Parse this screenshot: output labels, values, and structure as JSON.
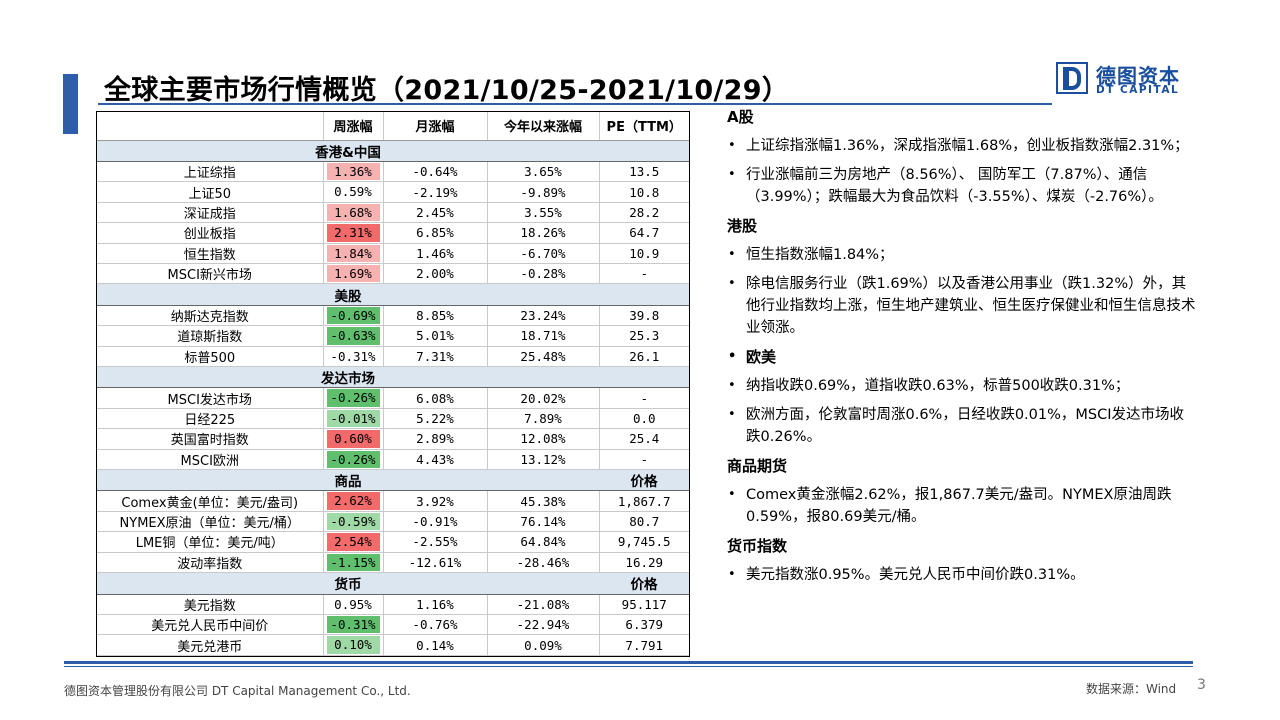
{
  "slide": {
    "title": "全球主要市场行情概览（2021/10/25-2021/10/29）",
    "logo": {
      "cn": "德图资本",
      "en": "DT CAPITAL"
    }
  },
  "table": {
    "headers": [
      "",
      "周涨幅",
      "月涨幅",
      "今年以来涨幅",
      "PE（TTM）"
    ],
    "colors": {
      "red_strong": "#f26a6a",
      "red_light": "#f6b1b1",
      "green_strong": "#5fbf6d",
      "green_light": "#9fd9a6"
    },
    "rows": [
      {
        "type": "cat",
        "label": "香港&中国",
        "last": ""
      },
      {
        "type": "data",
        "name": "上证综指",
        "week": "1.36%",
        "month": "-0.64%",
        "ytd": "3.65%",
        "last": "13.5",
        "fill": "red_light"
      },
      {
        "type": "data",
        "name": "上证50",
        "week": "0.59%",
        "month": "-2.19%",
        "ytd": "-9.89%",
        "last": "10.8",
        "fill": ""
      },
      {
        "type": "data",
        "name": "深证成指",
        "week": "1.68%",
        "month": "2.45%",
        "ytd": "3.55%",
        "last": "28.2",
        "fill": "red_light"
      },
      {
        "type": "data",
        "name": "创业板指",
        "week": "2.31%",
        "month": "6.85%",
        "ytd": "18.26%",
        "last": "64.7",
        "fill": "red_strong"
      },
      {
        "type": "data",
        "name": "恒生指数",
        "week": "1.84%",
        "month": "1.46%",
        "ytd": "-6.70%",
        "last": "10.9",
        "fill": "red_light"
      },
      {
        "type": "data",
        "name": "MSCI新兴市场",
        "week": "1.69%",
        "month": "2.00%",
        "ytd": "-0.28%",
        "last": "-",
        "fill": "red_light"
      },
      {
        "type": "cat",
        "label": "美股",
        "last": ""
      },
      {
        "type": "data",
        "name": "纳斯达克指数",
        "week": "-0.69%",
        "month": "8.85%",
        "ytd": "23.24%",
        "last": "39.8",
        "fill": "green_strong"
      },
      {
        "type": "data",
        "name": "道琼斯指数",
        "week": "-0.63%",
        "month": "5.01%",
        "ytd": "18.71%",
        "last": "25.3",
        "fill": "green_strong"
      },
      {
        "type": "data",
        "name": "标普500",
        "week": "-0.31%",
        "month": "7.31%",
        "ytd": "25.48%",
        "last": "26.1",
        "fill": ""
      },
      {
        "type": "cat",
        "label": "发达市场",
        "last": ""
      },
      {
        "type": "data",
        "name": "MSCI发达市场",
        "week": "-0.26%",
        "month": "6.08%",
        "ytd": "20.02%",
        "last": "-",
        "fill": "green_strong"
      },
      {
        "type": "data",
        "name": "日经225",
        "week": "-0.01%",
        "month": "5.22%",
        "ytd": "7.89%",
        "last": "0.0",
        "fill": "green_light"
      },
      {
        "type": "data",
        "name": "英国富时指数",
        "week": "0.60%",
        "month": "2.89%",
        "ytd": "12.08%",
        "last": "25.4",
        "fill": "red_strong"
      },
      {
        "type": "data",
        "name": "MSCI欧洲",
        "week": "-0.26%",
        "month": "4.43%",
        "ytd": "13.12%",
        "last": "-",
        "fill": "green_strong"
      },
      {
        "type": "cat",
        "label": "商品",
        "last": "价格"
      },
      {
        "type": "data",
        "name": "Comex黄金(单位：美元/盎司)",
        "week": "2.62%",
        "month": "3.92%",
        "ytd": "45.38%",
        "last": "1,867.7",
        "fill": "red_strong"
      },
      {
        "type": "data",
        "name": "NYMEX原油（单位：美元/桶）",
        "week": "-0.59%",
        "month": "-0.91%",
        "ytd": "76.14%",
        "last": "80.7",
        "fill": "green_light"
      },
      {
        "type": "data",
        "name": "LME铜（单位：美元/吨）",
        "week": "2.54%",
        "month": "-2.55%",
        "ytd": "64.84%",
        "last": "9,745.5",
        "fill": "red_strong"
      },
      {
        "type": "data",
        "name": "波动率指数",
        "week": "-1.15%",
        "month": "-12.61%",
        "ytd": "-28.46%",
        "last": "16.29",
        "fill": "green_strong"
      },
      {
        "type": "cat",
        "label": "货币",
        "last": "价格"
      },
      {
        "type": "data",
        "name": "美元指数",
        "week": "0.95%",
        "month": "1.16%",
        "ytd": "-21.08%",
        "last": "95.117",
        "fill": ""
      },
      {
        "type": "data",
        "name": "美元兑人民币中间价",
        "week": "-0.31%",
        "month": "-0.76%",
        "ytd": "-22.94%",
        "last": "6.379",
        "fill": "green_strong"
      },
      {
        "type": "data",
        "name": "美元兑港币",
        "week": "0.10%",
        "month": "0.14%",
        "ytd": "0.09%",
        "last": "7.791",
        "fill": "green_light"
      }
    ]
  },
  "commentary": [
    {
      "heading": "A股",
      "bullets": [
        "上证综指涨幅1.36%，深成指涨幅1.68%，创业板指数涨幅2.31%；",
        "行业涨幅前三为房地产（8.56%）、 国防军工（7.87%）、通信（3.99%）；跌幅最大为食品饮料（-3.55%）、煤炭（-2.76%）。"
      ]
    },
    {
      "heading": "港股",
      "bullets": [
        "恒生指数涨幅1.84%；",
        "除电信服务行业（跌1.69%）以及香港公用事业（跌1.32%）外，其他行业指数均上涨，恒生地产建筑业、恒生医疗保健业和恒生信息技术业领涨。"
      ]
    },
    {
      "heading": "欧美",
      "heading_bullet": true,
      "bullets": [
        "纳指收跌0.69%，道指收跌0.63%，标普500收跌0.31%；",
        "欧洲方面，伦敦富时周涨0.6%，日经收跌0.01%，MSCI发达市场收跌0.26%。"
      ]
    },
    {
      "heading": "商品期货",
      "bullets": [
        "Comex黄金涨幅2.62%，报1,867.7美元/盎司。NYMEX原油周跌0.59%，报80.69美元/桶。"
      ]
    },
    {
      "heading": "货币指数",
      "bullets": [
        "美元指数涨0.95%。美元兑人民币中间价跌0.31%。"
      ]
    }
  ],
  "footer": {
    "company": "德图资本管理股份有限公司 DT Capital Management Co., Ltd.",
    "source": "数据来源：Wind",
    "page": "3"
  }
}
